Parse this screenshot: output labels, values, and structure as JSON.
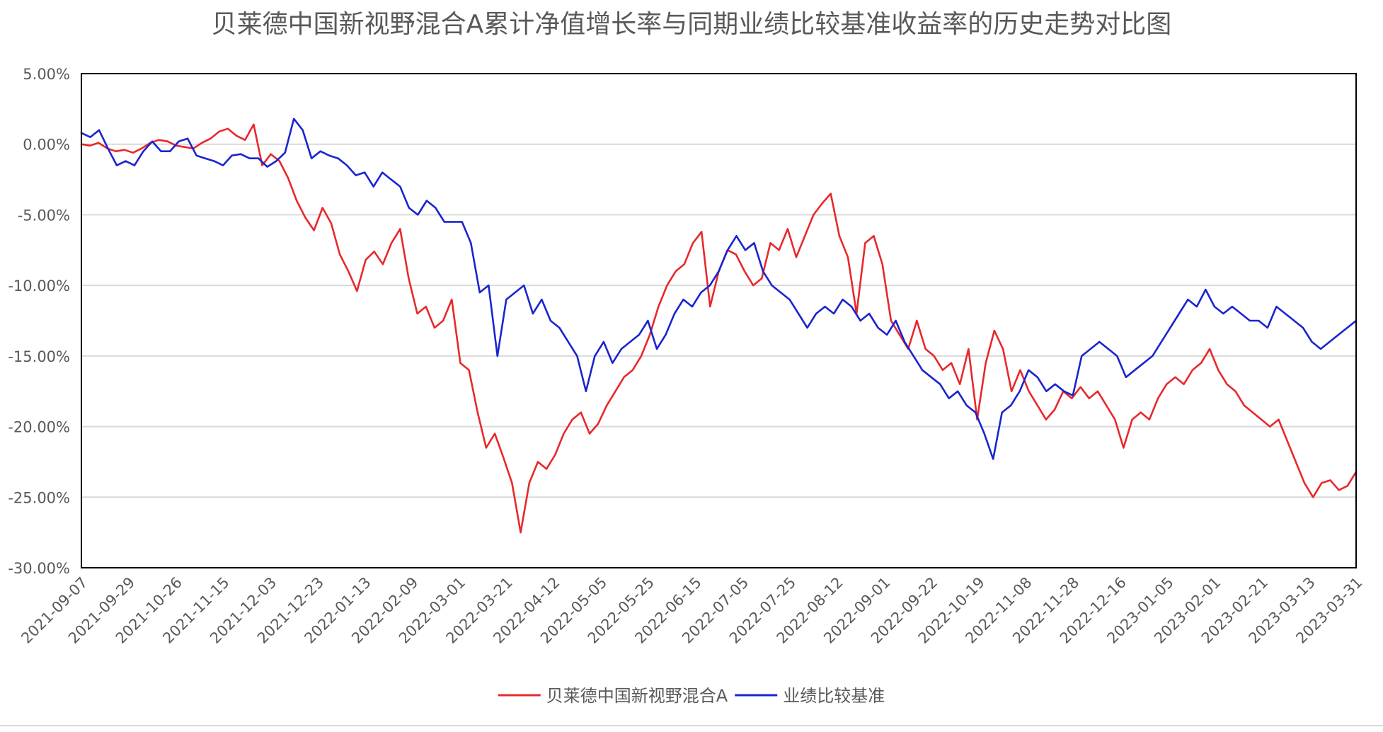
{
  "chart_data": {
    "type": "line",
    "title": "贝莱德中国新视野混合A累计净值增长率与同期业绩比较基准收益率的历史走势对比图",
    "x_ticks": [
      "2021-09-07",
      "2021-09-29",
      "2021-10-26",
      "2021-11-15",
      "2021-12-03",
      "2021-12-23",
      "2022-01-13",
      "2022-02-09",
      "2022-03-01",
      "2022-03-21",
      "2022-04-12",
      "2022-05-05",
      "2022-05-25",
      "2022-06-15",
      "2022-07-05",
      "2022-07-25",
      "2022-08-12",
      "2022-09-01",
      "2022-09-22",
      "2022-10-19",
      "2022-11-08",
      "2022-11-28",
      "2022-12-16",
      "2023-01-05",
      "2023-02-01",
      "2023-02-21",
      "2023-03-13",
      "2023-03-31"
    ],
    "y_ticks": [
      "5.00%",
      "0.00%",
      "-5.00%",
      "-10.00%",
      "-15.00%",
      "-20.00%",
      "-25.00%",
      "-30.00%"
    ],
    "ylim": [
      -30,
      5
    ],
    "grid": true,
    "legend_position": "bottom",
    "series": [
      {
        "name": "贝莱德中国新视野混合A",
        "color": "#e8282b",
        "values": [
          0.0,
          -0.1,
          0.1,
          -0.3,
          -0.5,
          -0.4,
          -0.6,
          -0.3,
          0.1,
          0.3,
          0.2,
          -0.1,
          -0.2,
          -0.3,
          0.1,
          0.4,
          0.9,
          1.1,
          0.6,
          0.3,
          1.4,
          -1.5,
          -0.7,
          -1.2,
          -2.4,
          -4.0,
          -5.2,
          -6.1,
          -4.5,
          -5.6,
          -7.8,
          -9.0,
          -10.4,
          -8.2,
          -7.6,
          -8.5,
          -7.0,
          -6.0,
          -9.5,
          -12.0,
          -11.5,
          -13.0,
          -12.5,
          -11.0,
          -15.5,
          -16.0,
          -19.0,
          -21.5,
          -20.5,
          -22.2,
          -24.0,
          -27.5,
          -24.0,
          -22.5,
          -23.0,
          -22.0,
          -20.5,
          -19.5,
          -19.0,
          -20.5,
          -19.8,
          -18.5,
          -17.5,
          -16.5,
          -16.0,
          -15.0,
          -13.5,
          -11.5,
          -10.0,
          -9.0,
          -8.5,
          -7.0,
          -6.2,
          -11.5,
          -9.0,
          -7.5,
          -7.8,
          -9.0,
          -10.0,
          -9.5,
          -7.0,
          -7.5,
          -6.0,
          -8.0,
          -6.5,
          -5.0,
          -4.2,
          -3.5,
          -6.5,
          -8.0,
          -12.0,
          -7.0,
          -6.5,
          -8.5,
          -12.5,
          -13.5,
          -14.5,
          -12.5,
          -14.5,
          -15.0,
          -16.0,
          -15.5,
          -17.0,
          -14.5,
          -19.5,
          -15.5,
          -13.2,
          -14.5,
          -17.5,
          -16.0,
          -17.5,
          -18.5,
          -19.5,
          -18.8,
          -17.5,
          -18.0,
          -17.2,
          -18.0,
          -17.5,
          -18.5,
          -19.5,
          -21.5,
          -19.5,
          -19.0,
          -19.5,
          -18.0,
          -17.0,
          -16.5,
          -17.0,
          -16.0,
          -15.5,
          -14.5,
          -16.0,
          -17.0,
          -17.5,
          -18.5,
          -19.0,
          -19.5,
          -20.0,
          -19.5,
          -21.0,
          -22.5,
          -24.0,
          -25.0,
          -24.0,
          -23.8,
          -24.5,
          -24.2,
          -23.2
        ]
      },
      {
        "name": "业绩比较基准",
        "color": "#1a24cf",
        "values": [
          0.8,
          0.5,
          1.0,
          -0.3,
          -1.5,
          -1.2,
          -1.5,
          -0.5,
          0.2,
          -0.5,
          -0.5,
          0.2,
          0.4,
          -0.8,
          -1.0,
          -1.2,
          -1.5,
          -0.8,
          -0.7,
          -1.0,
          -1.0,
          -1.6,
          -1.2,
          -0.6,
          1.8,
          1.0,
          -1.0,
          -0.5,
          -0.8,
          -1.0,
          -1.5,
          -2.2,
          -2.0,
          -3.0,
          -2.0,
          -2.5,
          -3.0,
          -4.5,
          -5.0,
          -4.0,
          -4.5,
          -5.5,
          -5.5,
          -5.5,
          -7.0,
          -10.5,
          -10.0,
          -15.0,
          -11.0,
          -10.5,
          -10.0,
          -12.0,
          -11.0,
          -12.5,
          -13.0,
          -14.0,
          -15.0,
          -17.5,
          -15.0,
          -14.0,
          -15.5,
          -14.5,
          -14.0,
          -13.5,
          -12.5,
          -14.5,
          -13.5,
          -12.0,
          -11.0,
          -11.5,
          -10.5,
          -10.0,
          -9.0,
          -7.5,
          -6.5,
          -7.5,
          -7.0,
          -9.0,
          -10.0,
          -10.5,
          -11.0,
          -12.0,
          -13.0,
          -12.0,
          -11.5,
          -12.0,
          -11.0,
          -11.5,
          -12.5,
          -12.0,
          -13.0,
          -13.5,
          -12.5,
          -14.0,
          -15.0,
          -16.0,
          -16.5,
          -17.0,
          -18.0,
          -17.5,
          -18.5,
          -19.0,
          -20.5,
          -22.3,
          -19.0,
          -18.5,
          -17.5,
          -16.0,
          -16.5,
          -17.5,
          -17.0,
          -17.5,
          -17.8,
          -15.0,
          -14.5,
          -14.0,
          -14.5,
          -15.0,
          -16.5,
          -16.0,
          -15.5,
          -15.0,
          -14.0,
          -13.0,
          -12.0,
          -11.0,
          -11.5,
          -10.3,
          -11.5,
          -12.0,
          -11.5,
          -12.0,
          -12.5,
          -12.5,
          -13.0,
          -11.5,
          -12.0,
          -12.5,
          -13.0,
          -14.0,
          -14.5,
          -14.0,
          -13.5,
          -13.0,
          -12.5
        ]
      }
    ]
  }
}
